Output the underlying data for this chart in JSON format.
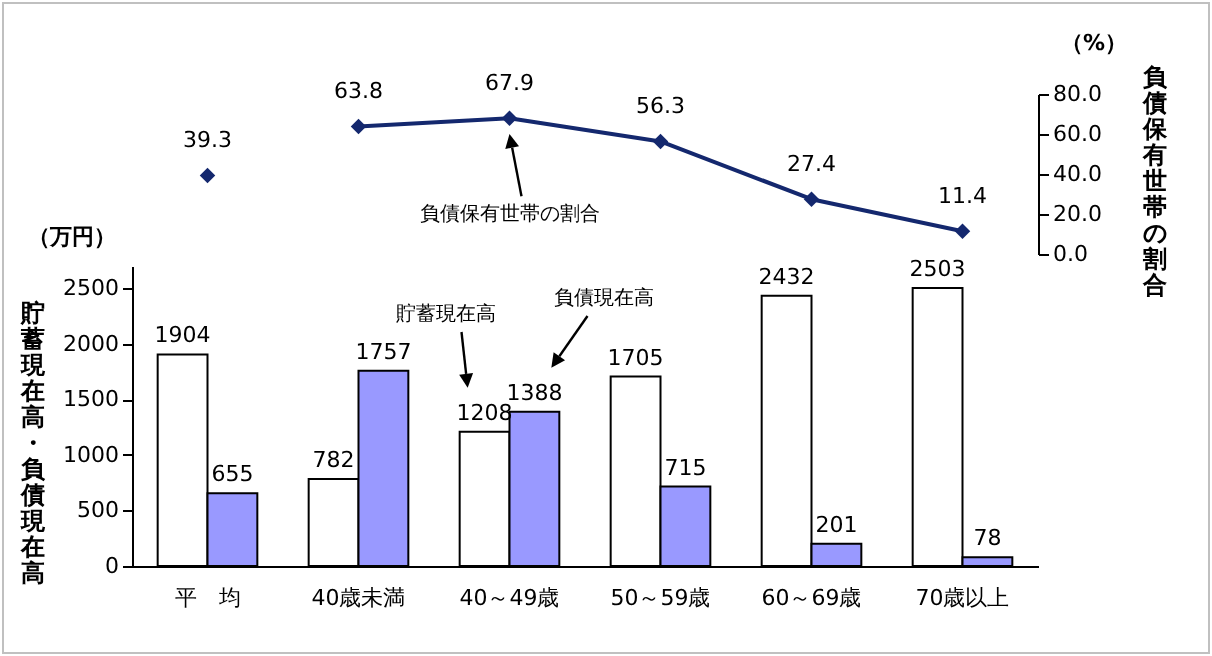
{
  "chart_data": [
    {
      "type": "line",
      "categories": [
        "平　均",
        "40歳未満",
        "40～49歳",
        "50～59歳",
        "60～69歳",
        "70歳以上"
      ],
      "series": [
        {
          "type": "scatter",
          "color": "#14286e",
          "axis": "y2",
          "values": [
            39.3,
            null,
            null,
            null,
            null,
            null
          ]
        },
        {
          "color": "#14286e",
          "axis": "y2",
          "values": [
            null,
            63.8,
            67.9,
            56.3,
            27.4,
            11.4
          ]
        }
      ],
      "y2label": "負債保有世帯の割合",
      "y2lim": [
        0,
        80
      ],
      "y2ticks": [
        {
          "value": 0,
          "label": "0.0"
        },
        {
          "value": 20,
          "label": "20.0"
        },
        {
          "value": 40,
          "label": "40.0"
        },
        {
          "value": 60,
          "label": "60.0"
        },
        {
          "value": 80,
          "label": "80.0"
        }
      ],
      "tick_labels": "y",
      "marker": "diamond",
      "data_labels": true,
      "annotations": [
        "（%）",
        {
          "text": "負債保有世帯の割合",
          "x": "40～49歳"
        }
      ]
    },
    {
      "type": "bar",
      "categories": [
        "平　均",
        "40歳未満",
        "40～49歳",
        "50～59歳",
        "60～69歳",
        "70歳以上"
      ],
      "series": [
        {
          "color": "#ffffff",
          "values": [
            1904,
            782,
            1208,
            1705,
            2432,
            2503
          ]
        },
        {
          "color": "#9999ff",
          "values": [
            655,
            1757,
            1388,
            715,
            201,
            78
          ]
        }
      ],
      "ylabel": "貯蓄現在高・負債現在高",
      "ylim": [
        0,
        2700
      ],
      "yticks": [
        0,
        500,
        1000,
        1500,
        2000,
        2500
      ],
      "data_labels": true,
      "annotations": [
        "（万円）",
        "貯蓄現在高",
        "負債現在高"
      ]
    }
  ]
}
